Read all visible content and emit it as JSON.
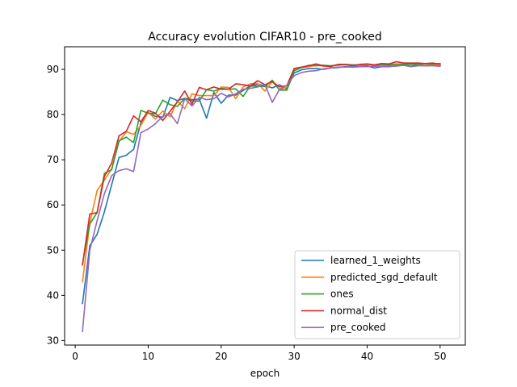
{
  "chart_data": {
    "type": "line",
    "title": "Accuracy evolution CIFAR10 - pre_cooked",
    "xlabel": "epoch",
    "ylabel": "",
    "xlim": [
      -1.45,
      53.45
    ],
    "ylim": [
      29.0,
      95.0
    ],
    "xticks": [
      0,
      10,
      20,
      30,
      40,
      50
    ],
    "yticks": [
      30,
      40,
      50,
      60,
      70,
      80,
      90
    ],
    "grid": false,
    "legend_position": "lower-right",
    "x": [
      1,
      2,
      3,
      4,
      5,
      6,
      7,
      8,
      9,
      10,
      11,
      12,
      13,
      14,
      15,
      16,
      17,
      18,
      19,
      20,
      21,
      22,
      23,
      24,
      25,
      26,
      27,
      28,
      29,
      30,
      31,
      32,
      33,
      34,
      35,
      36,
      37,
      38,
      39,
      40,
      41,
      42,
      43,
      44,
      45,
      46,
      47,
      48,
      49,
      50
    ],
    "series": [
      {
        "name": "learned_1_weights",
        "color": "#1f77b4",
        "values": [
          38.2,
          51.0,
          53.5,
          58.5,
          64.5,
          70.5,
          71.0,
          72.3,
          78.2,
          80.5,
          79.6,
          79.4,
          83.8,
          83.1,
          83.6,
          83.3,
          83.4,
          79.2,
          84.9,
          82.5,
          84.3,
          84.3,
          85.3,
          86.4,
          86.7,
          86.4,
          85.9,
          86.6,
          85.6,
          89.2,
          89.9,
          90.2,
          90.2,
          90.0,
          90.3,
          90.4,
          90.6,
          90.5,
          90.6,
          90.8,
          90.3,
          90.6,
          90.6,
          90.8,
          90.9,
          90.7,
          91.0,
          90.8,
          90.9,
          90.7
        ]
      },
      {
        "name": "predicted_sgd_default",
        "color": "#ff7f0e",
        "values": [
          43.0,
          56.0,
          63.2,
          65.5,
          68.0,
          74.0,
          76.2,
          75.6,
          77.6,
          80.5,
          79.0,
          80.8,
          79.5,
          83.0,
          81.3,
          84.6,
          84.2,
          84.2,
          84.2,
          86.1,
          86.0,
          83.5,
          86.1,
          86.8,
          86.9,
          85.2,
          87.3,
          85.5,
          86.0,
          89.9,
          90.4,
          90.6,
          90.9,
          90.7,
          90.7,
          90.9,
          91.0,
          90.8,
          90.9,
          91.1,
          90.9,
          90.8,
          91.0,
          91.0,
          91.1,
          91.1,
          91.1,
          91.2,
          91.0,
          91.1
        ]
      },
      {
        "name": "ones",
        "color": "#2ca02c",
        "values": [
          47.0,
          55.8,
          58.3,
          67.0,
          67.8,
          74.2,
          75.0,
          73.8,
          80.9,
          80.3,
          80.2,
          83.2,
          82.2,
          81.8,
          83.6,
          83.0,
          83.0,
          85.5,
          85.2,
          85.8,
          85.6,
          85.7,
          84.0,
          86.3,
          86.3,
          86.2,
          87.6,
          85.4,
          85.4,
          89.7,
          90.4,
          90.9,
          90.8,
          90.9,
          90.8,
          91.0,
          91.1,
          91.0,
          91.0,
          91.2,
          90.9,
          91.1,
          91.0,
          91.2,
          91.1,
          91.1,
          91.2,
          91.3,
          91.2,
          91.3
        ]
      },
      {
        "name": "normal_dist",
        "color": "#d62728",
        "values": [
          46.7,
          58.0,
          58.3,
          66.3,
          69.3,
          75.3,
          76.3,
          79.7,
          78.4,
          80.9,
          80.3,
          78.7,
          80.7,
          82.8,
          85.2,
          82.3,
          86.0,
          85.5,
          86.1,
          85.6,
          85.6,
          86.8,
          86.6,
          86.3,
          87.5,
          86.6,
          87.3,
          86.1,
          86.4,
          90.2,
          90.5,
          90.8,
          91.2,
          90.8,
          90.6,
          91.1,
          91.1,
          90.8,
          91.1,
          91.2,
          91.0,
          91.3,
          91.2,
          91.7,
          91.4,
          91.4,
          91.4,
          91.3,
          91.4,
          91.1
        ]
      },
      {
        "name": "pre_cooked",
        "color": "#9467bd",
        "values": [
          32.0,
          50.0,
          56.5,
          62.5,
          66.5,
          67.6,
          68.0,
          67.4,
          76.0,
          76.8,
          78.0,
          79.6,
          80.2,
          78.0,
          83.5,
          81.9,
          83.8,
          83.3,
          83.5,
          84.7,
          83.9,
          84.6,
          85.6,
          85.8,
          86.1,
          86.6,
          82.7,
          85.6,
          86.5,
          88.6,
          89.3,
          89.6,
          89.7,
          90.1,
          90.3,
          90.5,
          90.5,
          90.6,
          90.6,
          90.6,
          90.7,
          90.6,
          90.7,
          90.7,
          90.9,
          90.6,
          90.8,
          90.8,
          90.8,
          90.7
        ]
      }
    ]
  }
}
